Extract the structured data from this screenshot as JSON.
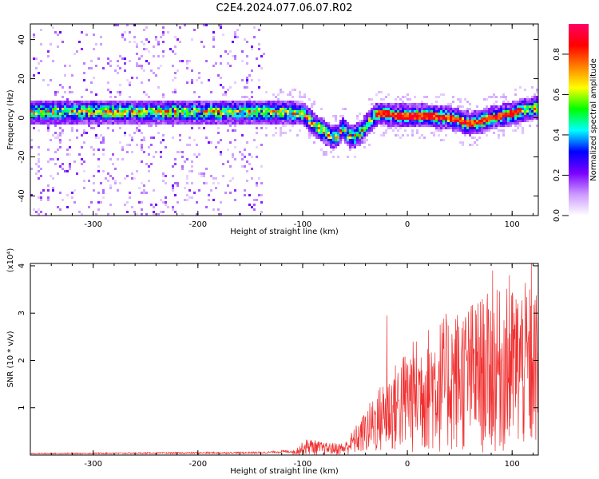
{
  "title": "C2E4.2024.077.06.07.R02",
  "chart_data": [
    {
      "type": "heatmap",
      "panel": "top",
      "xlabel": "Height of straight line (km)",
      "ylabel": "Frequency (Hz)",
      "xlim": [
        -360,
        125
      ],
      "ylim": [
        -50,
        48
      ],
      "xticks": [
        -300,
        -200,
        -100,
        0,
        100
      ],
      "xtick_labels": [
        "-300",
        "-200",
        "-100",
        "0",
        "100"
      ],
      "yticks": [
        -40,
        -20,
        0,
        20,
        40
      ],
      "ytick_labels": [
        "-40",
        "-20",
        "0",
        "20",
        "40"
      ],
      "colorbar": {
        "label": "Normalized spectral amplitude",
        "range": [
          0,
          0.95
        ],
        "ticks": [
          0.0,
          0.2,
          0.4,
          0.6,
          0.8
        ],
        "tick_labels": [
          "0.0",
          "0.2",
          "0.4",
          "0.6",
          "0.8"
        ],
        "colors": [
          "#ffffff",
          "#cc99ff",
          "#7a00ff",
          "#0000ff",
          "#00ffff",
          "#00ff00",
          "#ffff00",
          "#ff8000",
          "#ff0000",
          "#ff0066"
        ]
      },
      "ridge": {
        "x": [
          -360,
          -300,
          -200,
          -140,
          -120,
          -100,
          -90,
          -80,
          -72,
          -66,
          -62,
          -58,
          -52,
          -45,
          -38,
          -33,
          -28,
          -20,
          -10,
          0,
          20,
          40,
          60,
          70,
          80,
          100,
          110,
          125
        ],
        "y": [
          3,
          3,
          3,
          3,
          3,
          2,
          -3,
          -7,
          -10,
          -9,
          -5,
          -8,
          -10,
          -8,
          -3,
          0,
          2,
          2,
          1,
          1,
          1,
          0,
          -3,
          -2,
          0,
          2,
          4,
          5
        ]
      },
      "noise_region_x": [
        -360,
        -135
      ]
    },
    {
      "type": "line",
      "panel": "bottom",
      "xlabel": "Height of straight line (km)",
      "ylabel": "SNR (10 * v/v)",
      "yscale_label": "(x10⁴)",
      "xlim": [
        -360,
        125
      ],
      "ylim": [
        0,
        4.05
      ],
      "xticks": [
        -300,
        -200,
        -100,
        0,
        100
      ],
      "xtick_labels": [
        "-300",
        "-200",
        "-100",
        "0",
        "100"
      ],
      "yticks": [
        1,
        2,
        3,
        4
      ],
      "ytick_labels": [
        "1",
        "2",
        "3",
        "4"
      ],
      "series": [
        {
          "color": "#f03030",
          "envelope": {
            "x": [
              -360,
              -140,
              -110,
              -95,
              -80,
              -60,
              -40,
              -30,
              -20,
              -10,
              0,
              20,
              40,
              60,
              80,
              100,
              110,
              125
            ],
            "y": [
              0.03,
              0.05,
              0.08,
              0.35,
              0.25,
              0.25,
              0.9,
              1.3,
              1.6,
              1.9,
              2.2,
              2.6,
              2.9,
              3.1,
              3.3,
              3.4,
              3.5,
              3.3
            ]
          },
          "spikes": [
            {
              "x": -20,
              "y": 2.95
            },
            {
              "x": 81,
              "y": 3.9
            },
            {
              "x": 97,
              "y": 3.8
            },
            {
              "x": 118,
              "y": 4.05
            }
          ]
        }
      ]
    }
  ]
}
